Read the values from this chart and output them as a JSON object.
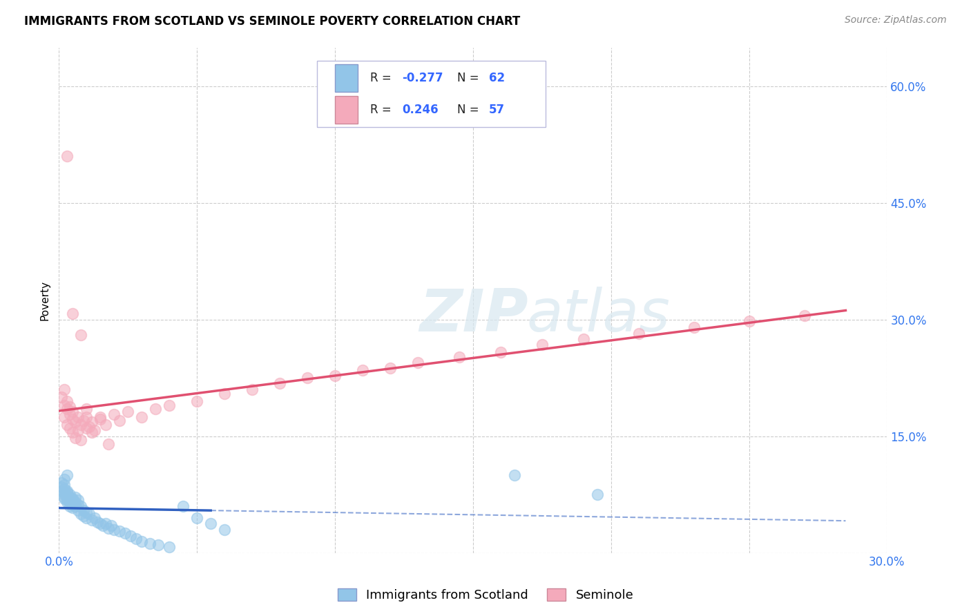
{
  "title": "IMMIGRANTS FROM SCOTLAND VS SEMINOLE POVERTY CORRELATION CHART",
  "source": "Source: ZipAtlas.com",
  "xlabel_blue": "Immigrants from Scotland",
  "xlabel_pink": "Seminole",
  "ylabel": "Poverty",
  "xlim": [
    0.0,
    0.3
  ],
  "ylim": [
    0.0,
    0.65
  ],
  "x_ticks": [
    0.0,
    0.05,
    0.1,
    0.15,
    0.2,
    0.25,
    0.3
  ],
  "x_tick_labels": [
    "0.0%",
    "",
    "",
    "",
    "",
    "",
    "30.0%"
  ],
  "y_ticks": [
    0.0,
    0.15,
    0.3,
    0.45,
    0.6
  ],
  "y_tick_labels_right": [
    "",
    "15.0%",
    "30.0%",
    "45.0%",
    "60.0%"
  ],
  "legend_r_blue": "-0.277",
  "legend_n_blue": "62",
  "legend_r_pink": "0.246",
  "legend_n_pink": "57",
  "blue_color": "#92C5E8",
  "pink_color": "#F4AABB",
  "trend_blue": "#3060C0",
  "trend_pink": "#E05070",
  "grid_color": "#CCCCCC",
  "watermark_zip": "ZIP",
  "watermark_atlas": "atlas",
  "blue_scatter_x": [
    0.001,
    0.001,
    0.001,
    0.002,
    0.002,
    0.002,
    0.002,
    0.002,
    0.002,
    0.003,
    0.003,
    0.003,
    0.003,
    0.003,
    0.003,
    0.004,
    0.004,
    0.004,
    0.004,
    0.004,
    0.005,
    0.005,
    0.005,
    0.005,
    0.006,
    0.006,
    0.006,
    0.007,
    0.007,
    0.007,
    0.008,
    0.008,
    0.009,
    0.009,
    0.01,
    0.01,
    0.011,
    0.012,
    0.013,
    0.014,
    0.015,
    0.016,
    0.017,
    0.018,
    0.019,
    0.02,
    0.022,
    0.024,
    0.026,
    0.028,
    0.03,
    0.033,
    0.036,
    0.04,
    0.045,
    0.05,
    0.055,
    0.06,
    0.165,
    0.195,
    0.002,
    0.003
  ],
  "blue_scatter_y": [
    0.08,
    0.085,
    0.09,
    0.072,
    0.078,
    0.082,
    0.07,
    0.075,
    0.088,
    0.068,
    0.072,
    0.078,
    0.065,
    0.08,
    0.074,
    0.07,
    0.065,
    0.075,
    0.06,
    0.072,
    0.068,
    0.062,
    0.07,
    0.058,
    0.065,
    0.06,
    0.072,
    0.062,
    0.068,
    0.055,
    0.06,
    0.05,
    0.055,
    0.048,
    0.052,
    0.045,
    0.05,
    0.042,
    0.045,
    0.04,
    0.038,
    0.035,
    0.038,
    0.032,
    0.035,
    0.03,
    0.028,
    0.025,
    0.022,
    0.018,
    0.015,
    0.012,
    0.01,
    0.008,
    0.06,
    0.045,
    0.038,
    0.03,
    0.1,
    0.075,
    0.095,
    0.1
  ],
  "pink_scatter_x": [
    0.001,
    0.002,
    0.002,
    0.002,
    0.003,
    0.003,
    0.003,
    0.004,
    0.004,
    0.004,
    0.005,
    0.005,
    0.005,
    0.006,
    0.006,
    0.007,
    0.007,
    0.008,
    0.008,
    0.009,
    0.01,
    0.01,
    0.011,
    0.012,
    0.013,
    0.015,
    0.017,
    0.02,
    0.022,
    0.025,
    0.03,
    0.035,
    0.04,
    0.05,
    0.06,
    0.07,
    0.08,
    0.09,
    0.1,
    0.11,
    0.12,
    0.13,
    0.145,
    0.16,
    0.175,
    0.19,
    0.21,
    0.23,
    0.25,
    0.27,
    0.005,
    0.01,
    0.015,
    0.003,
    0.008,
    0.012,
    0.018
  ],
  "pink_scatter_y": [
    0.2,
    0.19,
    0.175,
    0.21,
    0.185,
    0.165,
    0.195,
    0.178,
    0.16,
    0.188,
    0.172,
    0.155,
    0.182,
    0.168,
    0.148,
    0.175,
    0.158,
    0.165,
    0.145,
    0.17,
    0.16,
    0.175,
    0.162,
    0.168,
    0.158,
    0.172,
    0.165,
    0.178,
    0.17,
    0.182,
    0.175,
    0.185,
    0.19,
    0.195,
    0.205,
    0.21,
    0.218,
    0.225,
    0.228,
    0.235,
    0.238,
    0.245,
    0.252,
    0.258,
    0.268,
    0.275,
    0.282,
    0.29,
    0.298,
    0.305,
    0.308,
    0.185,
    0.175,
    0.51,
    0.28,
    0.155,
    0.14
  ],
  "blue_trend_x_solid_end": 0.055,
  "blue_trend_x_dash_end": 0.285,
  "pink_trend_x_end": 0.285
}
